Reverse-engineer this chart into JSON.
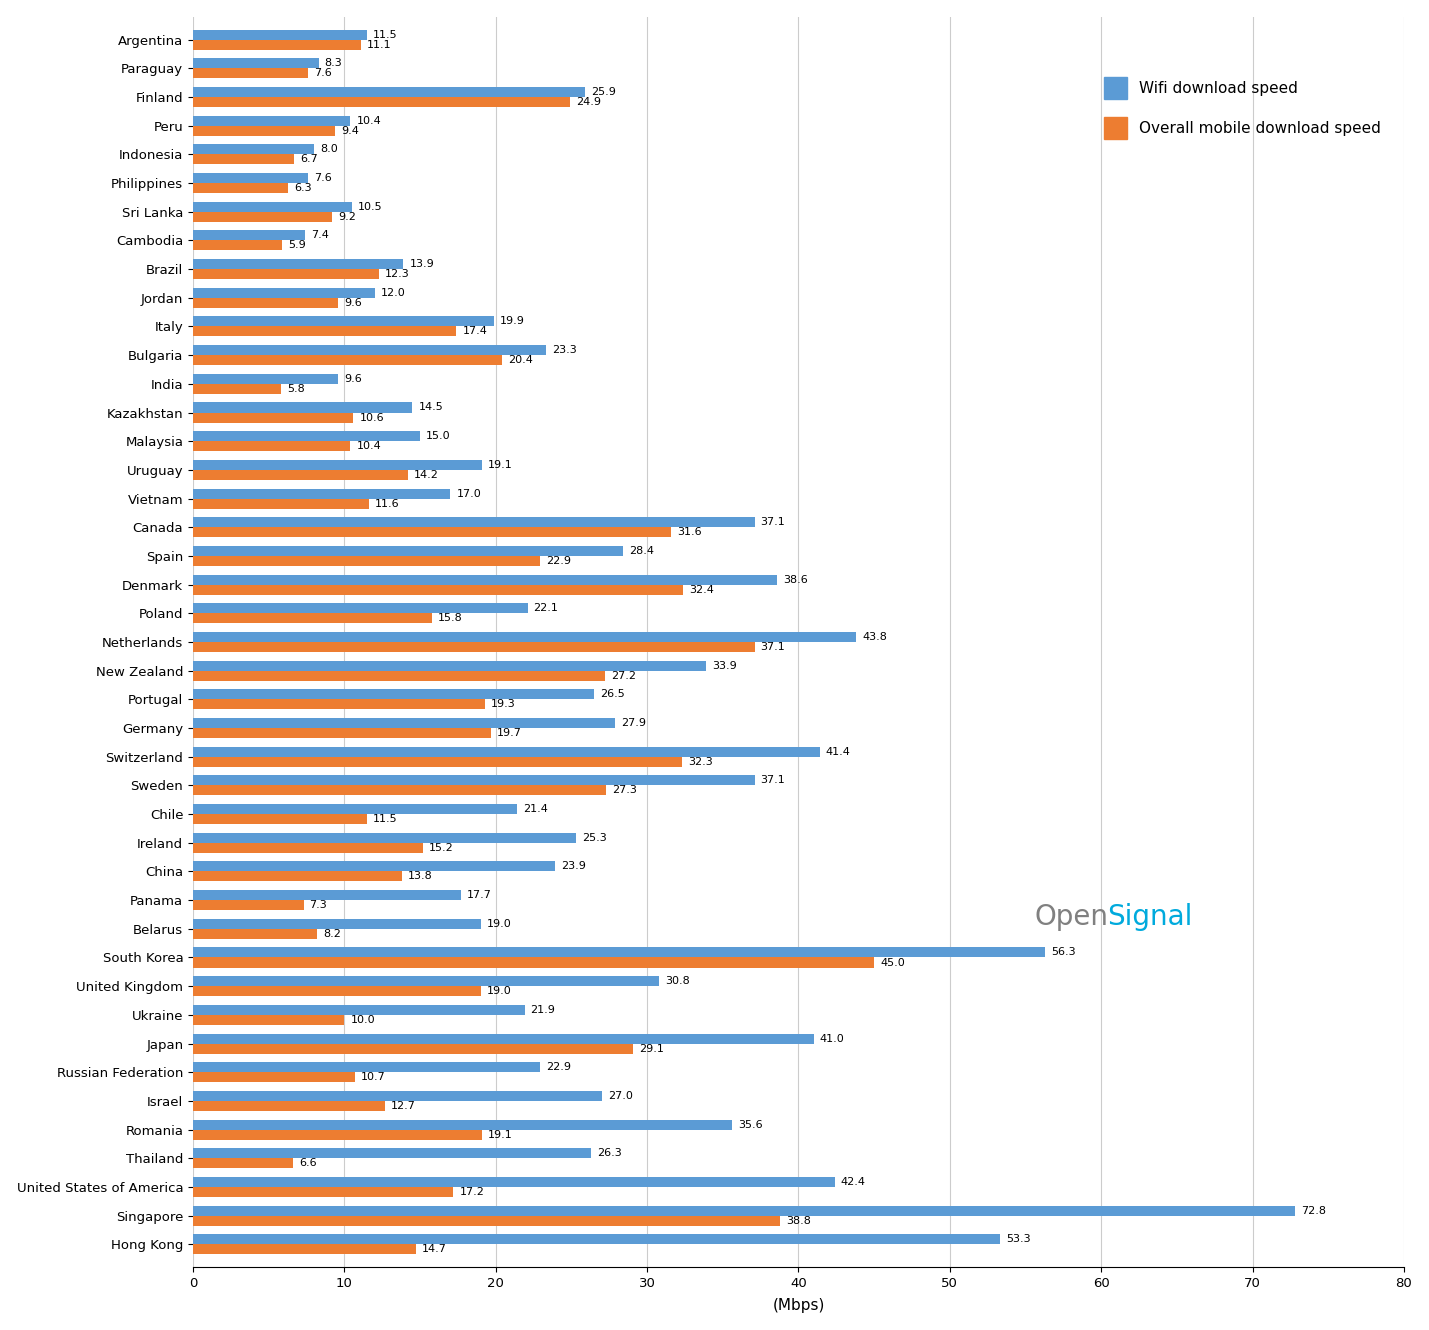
{
  "countries": [
    "Argentina",
    "Paraguay",
    "Finland",
    "Peru",
    "Indonesia",
    "Philippines",
    "Sri Lanka",
    "Cambodia",
    "Brazil",
    "Jordan",
    "Italy",
    "Bulgaria",
    "India",
    "Kazakhstan",
    "Malaysia",
    "Uruguay",
    "Vietnam",
    "Canada",
    "Spain",
    "Denmark",
    "Poland",
    "Netherlands",
    "New Zealand",
    "Portugal",
    "Germany",
    "Switzerland",
    "Sweden",
    "Chile",
    "Ireland",
    "China",
    "Panama",
    "Belarus",
    "South Korea",
    "United Kingdom",
    "Ukraine",
    "Japan",
    "Russian Federation",
    "Israel",
    "Romania",
    "Thailand",
    "United States of America",
    "Singapore",
    "Hong Kong"
  ],
  "wifi": [
    11.5,
    8.3,
    25.9,
    10.4,
    8.0,
    7.6,
    10.5,
    7.4,
    13.9,
    12.0,
    19.9,
    23.3,
    9.6,
    14.5,
    15.0,
    19.1,
    17.0,
    37.1,
    28.4,
    38.6,
    22.1,
    43.8,
    33.9,
    26.5,
    27.9,
    41.4,
    37.1,
    21.4,
    25.3,
    23.9,
    17.7,
    19.0,
    56.3,
    30.8,
    21.9,
    41.0,
    22.9,
    27.0,
    35.6,
    26.3,
    42.4,
    72.8,
    53.3
  ],
  "mobile": [
    11.1,
    7.6,
    24.9,
    9.4,
    6.7,
    6.3,
    9.2,
    5.9,
    12.3,
    9.6,
    17.4,
    20.4,
    5.8,
    10.6,
    10.4,
    14.2,
    11.6,
    31.6,
    22.9,
    32.4,
    15.8,
    37.1,
    27.2,
    19.3,
    19.7,
    32.3,
    27.3,
    11.5,
    15.2,
    13.8,
    7.3,
    8.2,
    45.0,
    19.0,
    10.0,
    29.1,
    10.7,
    12.7,
    19.1,
    6.6,
    17.2,
    38.8,
    14.7
  ],
  "wifi_color": "#5B9BD5",
  "mobile_color": "#ED7D31",
  "xlabel": "(Mbps)",
  "legend_wifi": "Wifi download speed",
  "legend_mobile": "Overall mobile download speed",
  "xlim": [
    0,
    80
  ],
  "xticks": [
    0,
    10,
    20,
    30,
    40,
    50,
    60,
    70,
    80
  ],
  "background_color": "#FFFFFF",
  "bar_height": 0.35,
  "label_fontsize": 8.0,
  "tick_fontsize": 9.5,
  "legend_fontsize": 11
}
